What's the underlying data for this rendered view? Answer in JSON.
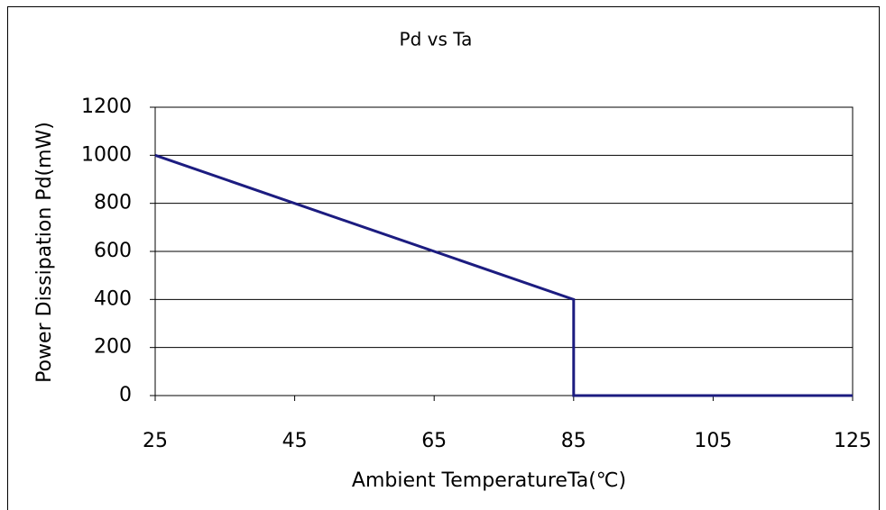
{
  "chart_data": {
    "type": "line",
    "title": "Pd vs Ta",
    "xlabel": "Ambient TemperatureTa(℃)",
    "ylabel": "Power Dissipation Pd(mW)",
    "x": [
      25,
      85,
      85,
      125
    ],
    "values": [
      1000,
      400,
      0,
      0
    ],
    "color": "#1c1c80",
    "xlim": [
      25,
      125
    ],
    "ylim": [
      0,
      1200
    ],
    "xticks": [
      25,
      45,
      65,
      85,
      105,
      125
    ],
    "yticks": [
      0,
      200,
      400,
      600,
      800,
      1000,
      1200
    ],
    "grid": true
  }
}
